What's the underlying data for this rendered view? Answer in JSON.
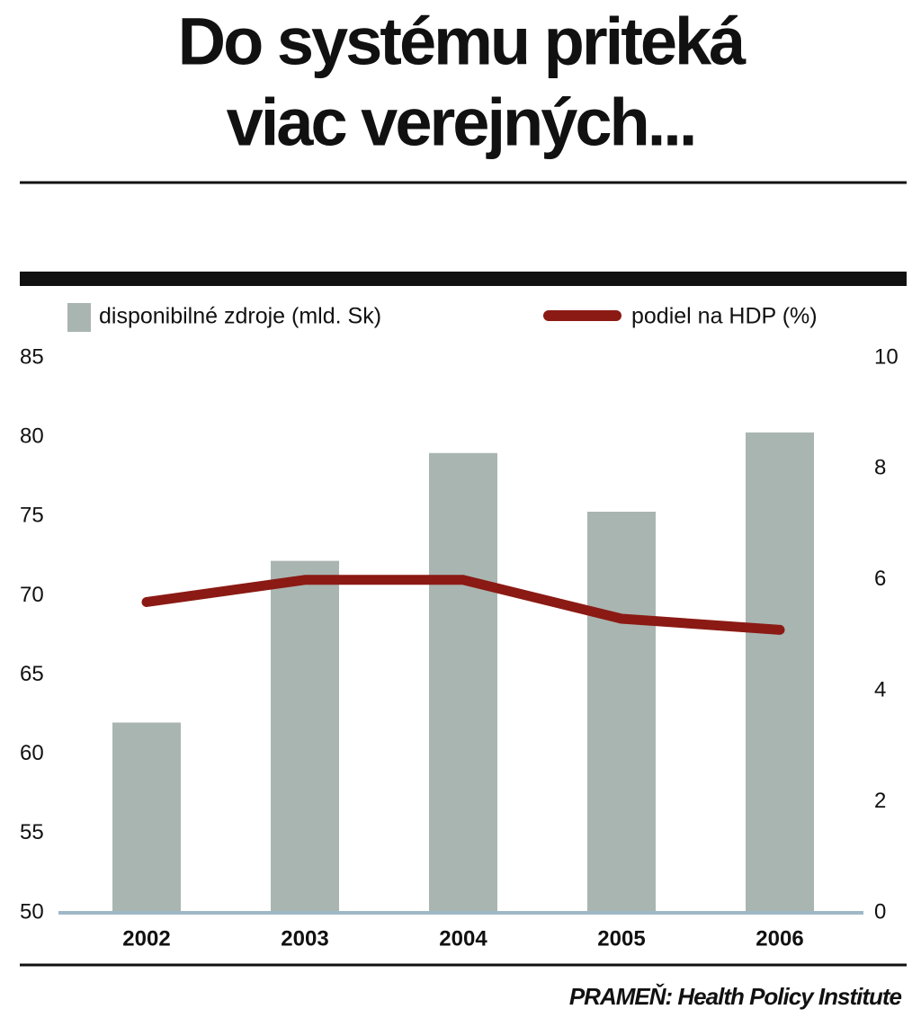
{
  "chart_data": {
    "type": "bar",
    "title": [
      "Do systému priteká",
      "viac verejných..."
    ],
    "categories": [
      "2002",
      "2003",
      "2004",
      "2005",
      "2006"
    ],
    "series": [
      {
        "name": "disponibilné zdroje  (mld. Sk)",
        "color": "#a9b5b1",
        "values": [
          62,
          72.2,
          79,
          75.3,
          80.3
        ]
      },
      {
        "name": "podiel na HDP (%)",
        "color": "#8b1a14",
        "type": "line",
        "axis": "y2",
        "values": [
          5.6,
          6.0,
          6.0,
          5.3,
          5.1
        ]
      }
    ],
    "ylim": [
      50,
      85
    ],
    "yticks": [
      50,
      55,
      60,
      65,
      70,
      75,
      80,
      85
    ],
    "y2lim": [
      0,
      10
    ],
    "y2ticks": [
      0,
      2,
      4,
      6,
      8,
      10
    ],
    "source": "PRAMEŇ: Health Policy Institute"
  }
}
